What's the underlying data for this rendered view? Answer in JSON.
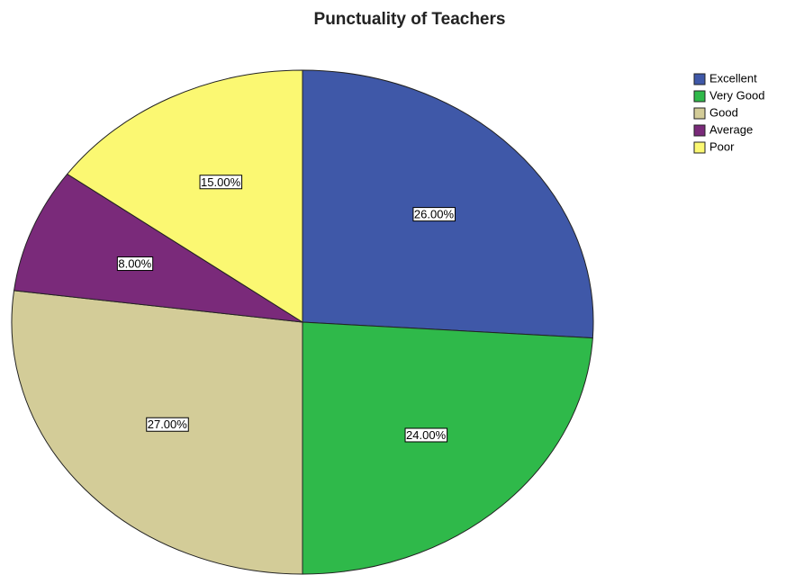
{
  "chart_data": {
    "type": "pie",
    "title": "Punctuality of Teachers",
    "categories": [
      "Excellent",
      "Very Good",
      "Good",
      "Average",
      "Poor"
    ],
    "values": [
      26,
      24,
      27,
      8,
      15
    ],
    "value_labels": [
      "26.00%",
      "24.00%",
      "27.00%",
      "8.00%",
      "15.00%"
    ],
    "colors": [
      "#3f58a8",
      "#2fb94a",
      "#d3cc98",
      "#7a2a7a",
      "#fbf872"
    ],
    "legend": "right"
  }
}
